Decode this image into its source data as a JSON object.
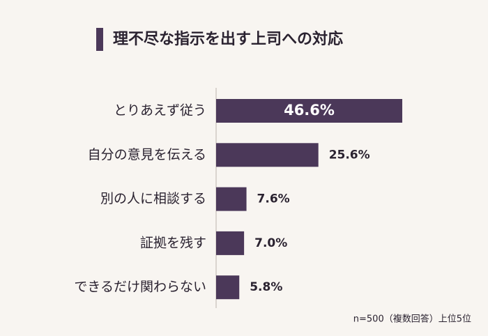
{
  "chart_data": {
    "type": "bar",
    "orientation": "horizontal",
    "title": "理不尽な指示を出す上司への対応",
    "categories": [
      "とりあえず従う",
      "自分の意見を伝える",
      "別の人に相談する",
      "証拠を残す",
      "できるだけ関わらない"
    ],
    "values": [
      46.6,
      25.6,
      7.6,
      7.0,
      5.8
    ],
    "value_labels": [
      "46.6%",
      "25.6%",
      "7.6%",
      "7.0%",
      "5.8%"
    ],
    "color": "#4b3859",
    "note": "n=500（複数回答）上位5位"
  }
}
